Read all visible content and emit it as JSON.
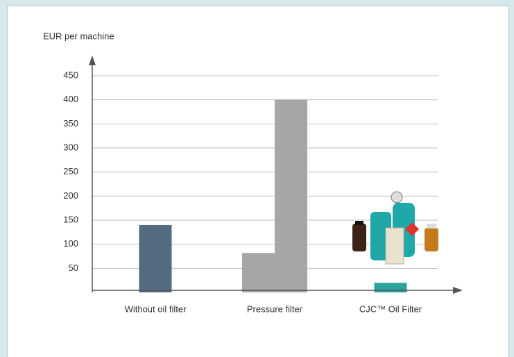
{
  "chart_data": {
    "type": "bar",
    "y_label": "EUR per machine",
    "categories": [
      "Without oil filter",
      "Pressure filter",
      "CJC™ Oil Filter"
    ],
    "series": [
      {
        "colors": [
          "#546a80",
          "#a6a6a6",
          "#2aa39f"
        ],
        "values": [
          140,
          82,
          20
        ]
      },
      {
        "color": "#a6a6a6",
        "values": [
          null,
          400,
          null
        ]
      }
    ],
    "ylim": [
      0,
      450
    ],
    "yticks": [
      50,
      100,
      150,
      200,
      250,
      300,
      350,
      400,
      450
    ],
    "grid": true
  }
}
